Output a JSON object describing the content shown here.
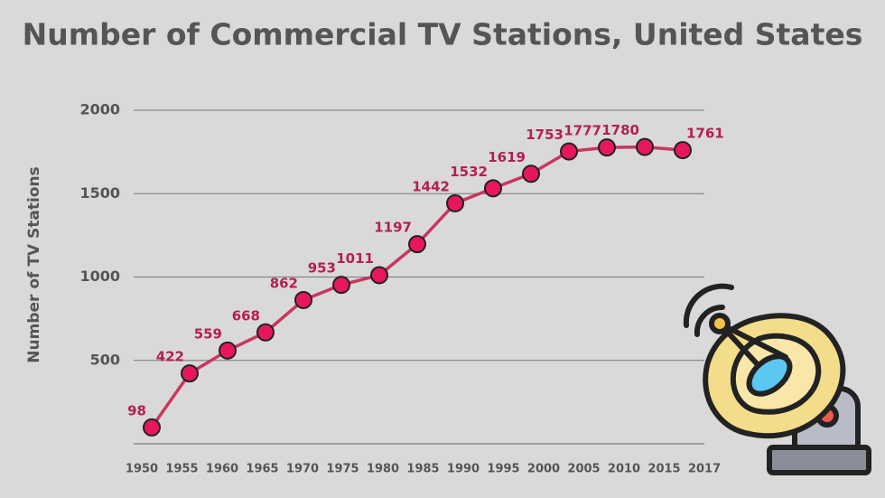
{
  "chart_data": {
    "type": "line",
    "title": "Number of Commercial TV Stations, United States",
    "y_label": "Number of TV Stations",
    "categories": [
      "1950",
      "1955",
      "1960",
      "1965",
      "1970",
      "1975",
      "1980",
      "1985",
      "1990",
      "1995",
      "2000",
      "2005",
      "2010",
      "2015",
      "2017"
    ],
    "series": [
      {
        "name": "Commercial TV Stations",
        "color": "#c8375e",
        "values": [
          98,
          422,
          559,
          668,
          862,
          953,
          1011,
          1197,
          1442,
          1532,
          1619,
          1753,
          1777,
          1780,
          1761
        ]
      }
    ],
    "ylim": [
      0,
      2000
    ],
    "yticks": [
      500,
      1000,
      1500,
      2000
    ],
    "grid": true
  }
}
